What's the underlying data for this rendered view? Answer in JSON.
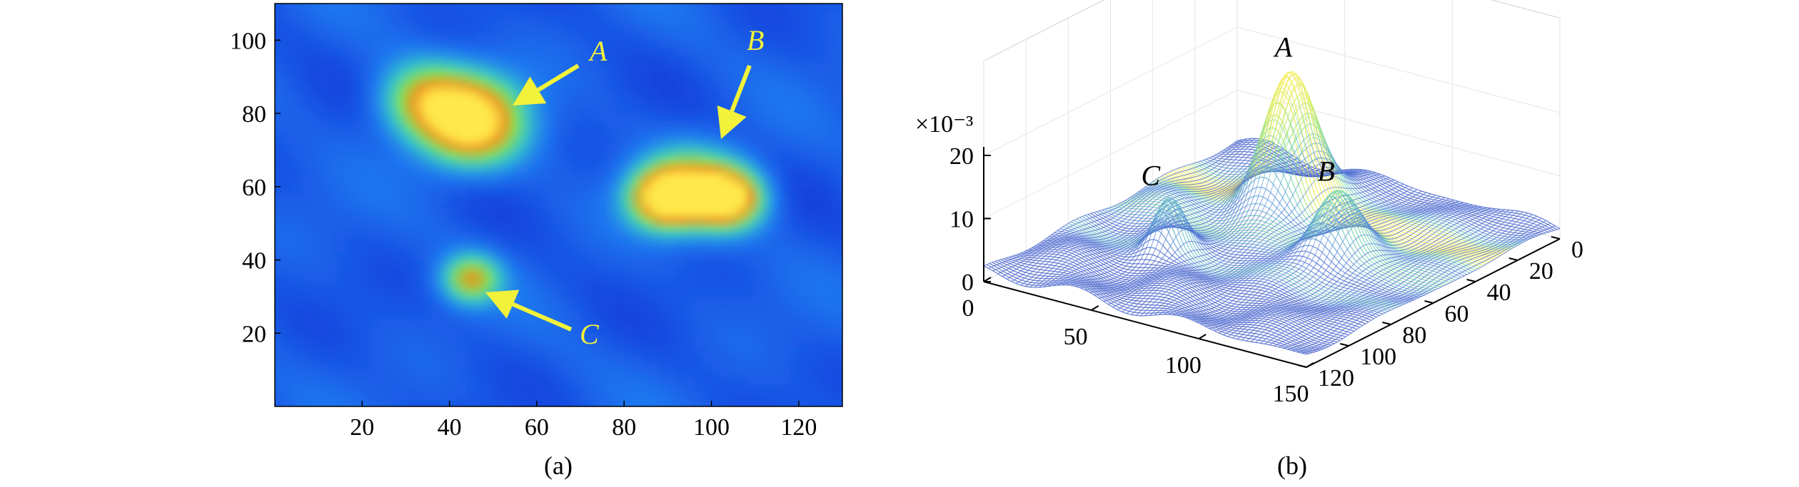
{
  "chart_data": [
    {
      "type": "heatmap",
      "caption": "(a)",
      "xlim": [
        0,
        130
      ],
      "ylim": [
        0,
        110
      ],
      "x_ticks": [
        20,
        40,
        60,
        80,
        100,
        120
      ],
      "y_ticks": [
        20,
        40,
        60,
        80,
        100
      ],
      "colormap": [
        "#1233d8",
        "#1f78f0",
        "#35c6c8",
        "#7ee24a",
        "#f08a1c",
        "#ffe84a"
      ],
      "background_level": 0.12,
      "peaks": [
        {
          "x": 45,
          "y": 78,
          "sigma": 8,
          "amplitude": 1.0
        },
        {
          "x": 34,
          "y": 84,
          "sigma": 7,
          "amplitude": 0.52
        },
        {
          "x": 89,
          "y": 57,
          "sigma": 5.5,
          "amplitude": 0.86
        },
        {
          "x": 104,
          "y": 57,
          "sigma": 5.5,
          "amplitude": 0.86
        },
        {
          "x": 96,
          "y": 60,
          "sigma": 7.5,
          "amplitude": 0.55
        },
        {
          "x": 45,
          "y": 35,
          "sigma": 4.5,
          "amplitude": 0.6
        }
      ],
      "annotations": [
        {
          "label": "A",
          "x": 52,
          "y": 83
        },
        {
          "label": "B",
          "x": 101,
          "y": 71
        },
        {
          "label": "C",
          "x": 47,
          "y": 31
        }
      ]
    },
    {
      "type": "surface",
      "caption": "(b)",
      "scale_label": "×10⁻³",
      "xlim": [
        0,
        150
      ],
      "ylim": [
        0,
        120
      ],
      "zlim": [
        0,
        20
      ],
      "x_ticks": [
        0,
        50,
        100,
        150
      ],
      "y_ticks": [
        0,
        20,
        40,
        60,
        80,
        100,
        120
      ],
      "z_ticks": [
        0,
        10,
        20
      ],
      "base_level": 2,
      "peaks": [
        {
          "label": "A",
          "x": 55,
          "y": 30,
          "sigma": 9,
          "amplitude": 21
        },
        {
          "label": "B",
          "x": 100,
          "y": 55,
          "sigma": 8,
          "amplitude": 11
        },
        {
          "label": "C",
          "x": 45,
          "y": 78,
          "sigma": 5,
          "amplitude": 7
        }
      ]
    }
  ]
}
